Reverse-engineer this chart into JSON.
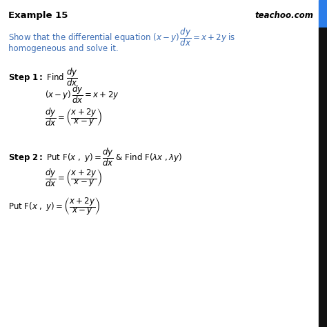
{
  "title": "Example 15",
  "watermark": "teachoo.com",
  "bg_color": "#ffffff",
  "blue_color": "#3d6eb5",
  "black_color": "#000000",
  "border_blue": "#2b7de9",
  "border_black": "#111111",
  "figsize": [
    4.74,
    4.74
  ],
  "dpi": 100
}
